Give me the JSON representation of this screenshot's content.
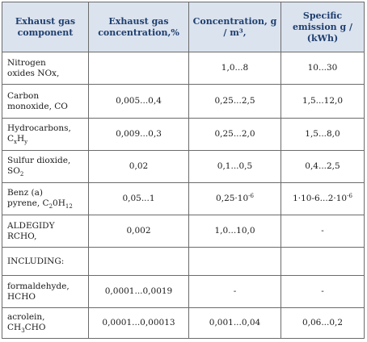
{
  "headers": [
    "Exhaust gas component",
    "Exhaust gas concentration,%",
    "Concentration, g / m³,",
    "Specific emission g / (kWh)"
  ],
  "rows": [
    {
      "component": "Nitrogen oxides NOx,",
      "percent": "",
      "g_m3": "1,0...8",
      "g_kwh": "10...30"
    },
    {
      "component": "Carbon monoxide, CO",
      "percent": "0,005...0,4",
      "g_m3": "0,25...2,5",
      "g_kwh": "1,5...12,0"
    },
    {
      "component": "Hydrocarbons, CxHy",
      "percent": "0,009...0,3",
      "g_m3": "0,25...2,0",
      "g_kwh": "1,5...8,0"
    },
    {
      "component": "Sulfur dioxide, SO2",
      "percent": "0,02",
      "g_m3": "0,1...0,5",
      "g_kwh": "0,4...2,5"
    },
    {
      "component": "Benz (a) pyrene, C20H12",
      "percent": "0,05...1",
      "g_m3": "0,25·10-6",
      "g_kwh": "1·10-6...2·10-6"
    },
    {
      "component": "ALDEGIDY RCHO,",
      "percent": "0,002",
      "g_m3": "1,0...10,0",
      "g_kwh": "-"
    },
    {
      "component": "INCLUDING:",
      "percent": "",
      "g_m3": "",
      "g_kwh": ""
    },
    {
      "component": "formaldehyde, HCHO",
      "percent": "0,0001...0,0019",
      "g_m3": "-",
      "g_kwh": "-"
    },
    {
      "component": "acrolein, CH3CHO",
      "percent": "0,0001...0,00013",
      "g_m3": "0,001...0,04",
      "g_kwh": "0,06...0,2"
    }
  ]
}
